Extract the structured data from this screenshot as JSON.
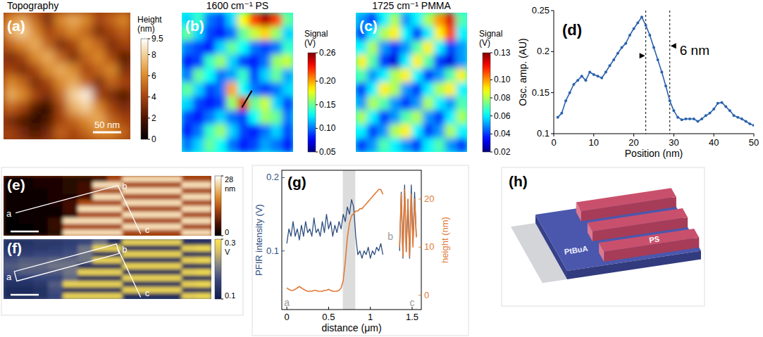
{
  "chart_data": [
    {
      "type": "heatmap",
      "panel": "(a)",
      "title": "Topography",
      "colorbar_label": "Height (nm)",
      "colorbar_range": [
        0,
        9.5
      ],
      "colorbar_ticks": [
        0,
        2,
        4,
        6,
        8,
        9.5
      ],
      "scale_bar": "50 nm",
      "cells": [
        [
          6,
          7,
          5,
          3,
          6,
          7,
          6,
          4,
          5,
          6
        ],
        [
          7,
          8,
          6,
          4,
          5,
          6,
          5,
          3,
          4,
          5
        ],
        [
          5,
          6,
          7,
          5,
          3,
          4,
          6,
          5,
          3,
          4
        ],
        [
          3,
          4,
          6,
          7,
          5,
          3,
          5,
          6,
          4,
          2
        ],
        [
          4,
          3,
          4,
          6,
          7,
          6,
          4,
          5,
          6,
          3
        ],
        [
          6,
          5,
          3,
          4,
          6,
          7,
          5,
          3,
          5,
          4
        ],
        [
          7,
          6,
          4,
          3,
          5,
          8,
          9,
          4,
          3,
          2
        ],
        [
          5,
          4,
          2,
          1,
          4,
          7,
          8,
          6,
          4,
          3
        ],
        [
          3,
          2,
          1,
          2,
          4,
          5,
          6,
          7,
          5,
          4
        ],
        [
          4,
          3,
          2,
          3,
          5,
          4,
          5,
          6,
          6,
          5
        ]
      ]
    },
    {
      "type": "heatmap",
      "panel": "(b)",
      "title": "1600 cm⁻¹ PS",
      "colorbar_label": "Signal (V)",
      "colorbar_range": [
        0.05,
        0.26
      ],
      "colorbar_ticks": [
        0.05,
        {
          "value": 0.1,
          "label": "0.10"
        },
        0.15,
        {
          "value": 0.2,
          "label": "0.20"
        },
        0.26
      ],
      "cells": [
        [
          0.12,
          0.14,
          0.1,
          0.09,
          0.12,
          0.18,
          0.22,
          0.25,
          0.22,
          0.15
        ],
        [
          0.15,
          0.12,
          0.09,
          0.08,
          0.1,
          0.15,
          0.17,
          0.19,
          0.16,
          0.12
        ],
        [
          0.1,
          0.09,
          0.08,
          0.12,
          0.15,
          0.13,
          0.1,
          0.09,
          0.1,
          0.14
        ],
        [
          0.08,
          0.09,
          0.14,
          0.16,
          0.12,
          0.09,
          0.08,
          0.1,
          0.16,
          0.17
        ],
        [
          0.1,
          0.15,
          0.13,
          0.1,
          0.11,
          0.14,
          0.09,
          0.12,
          0.15,
          0.11
        ],
        [
          0.15,
          0.12,
          0.09,
          0.1,
          0.2,
          0.13,
          0.1,
          0.09,
          0.1,
          0.12
        ],
        [
          0.12,
          0.09,
          0.08,
          0.09,
          0.16,
          0.24,
          0.15,
          0.17,
          0.12,
          0.09
        ],
        [
          0.09,
          0.08,
          0.1,
          0.12,
          0.1,
          0.09,
          0.13,
          0.16,
          0.15,
          0.1
        ],
        [
          0.08,
          0.1,
          0.14,
          0.16,
          0.12,
          0.09,
          0.08,
          0.1,
          0.12,
          0.09
        ],
        [
          0.1,
          0.12,
          0.15,
          0.13,
          0.1,
          0.08,
          0.09,
          0.11,
          0.1,
          0.08
        ]
      ]
    },
    {
      "type": "heatmap",
      "panel": "(c)",
      "title": "1725 cm⁻¹ PMMA",
      "colorbar_label": "Signal (V)",
      "colorbar_range": [
        0.02,
        0.13
      ],
      "colorbar_ticks": [
        0.02,
        0.04,
        0.06,
        0.08,
        {
          "value": 0.1,
          "label": "0.10"
        },
        0.13
      ],
      "cells": [
        [
          0.05,
          0.04,
          0.06,
          0.08,
          0.05,
          0.06,
          0.08,
          0.1,
          0.12,
          0.07
        ],
        [
          0.04,
          0.06,
          0.08,
          0.09,
          0.06,
          0.04,
          0.06,
          0.09,
          0.11,
          0.06
        ],
        [
          0.06,
          0.08,
          0.05,
          0.04,
          0.05,
          0.07,
          0.09,
          0.06,
          0.04,
          0.05
        ],
        [
          0.09,
          0.07,
          0.04,
          0.03,
          0.06,
          0.09,
          0.07,
          0.04,
          0.03,
          0.05
        ],
        [
          0.07,
          0.05,
          0.06,
          0.08,
          0.09,
          0.06,
          0.04,
          0.05,
          0.07,
          0.09
        ],
        [
          0.04,
          0.06,
          0.09,
          0.08,
          0.05,
          0.04,
          0.06,
          0.08,
          0.09,
          0.06
        ],
        [
          0.05,
          0.08,
          0.07,
          0.05,
          0.04,
          0.05,
          0.08,
          0.06,
          0.05,
          0.07
        ],
        [
          0.08,
          0.06,
          0.04,
          0.05,
          0.07,
          0.08,
          0.05,
          0.04,
          0.06,
          0.08
        ],
        [
          0.06,
          0.04,
          0.05,
          0.08,
          0.09,
          0.06,
          0.04,
          0.05,
          0.08,
          0.06
        ],
        [
          0.04,
          0.05,
          0.07,
          0.06,
          0.05,
          0.04,
          0.06,
          0.07,
          0.05,
          0.04
        ]
      ]
    },
    {
      "type": "line",
      "panel": "(d)",
      "x_label": "Position (nm)",
      "y_label": "Osc. amp. (AU)",
      "x": [
        1,
        2,
        3,
        4,
        5,
        6,
        7,
        8,
        9,
        10,
        11,
        12,
        13,
        14,
        15,
        16,
        17,
        18,
        19,
        20,
        21,
        22,
        23,
        24,
        25,
        26,
        27,
        28,
        29,
        30,
        31,
        32,
        33,
        34,
        35,
        36,
        37,
        38,
        39,
        40,
        41,
        42,
        43,
        44,
        45,
        46,
        47,
        48,
        49,
        50
      ],
      "series": [
        {
          "color": "#2a62ad",
          "marker": "circle",
          "values": [
            0.12,
            0.125,
            0.14,
            0.15,
            0.16,
            0.165,
            0.17,
            0.165,
            0.175,
            0.172,
            0.17,
            0.168,
            0.175,
            0.183,
            0.19,
            0.198,
            0.205,
            0.21,
            0.22,
            0.228,
            0.235,
            0.242,
            0.232,
            0.22,
            0.205,
            0.19,
            0.175,
            0.158,
            0.14,
            0.128,
            0.12,
            0.117,
            0.118,
            0.118,
            0.118,
            0.115,
            0.118,
            0.122,
            0.125,
            0.13,
            0.137,
            0.138,
            0.133,
            0.128,
            0.122,
            0.12,
            0.118,
            0.115,
            0.112,
            0.11
          ]
        }
      ],
      "xlim": [
        0,
        50
      ],
      "xticks": [
        0,
        10,
        20,
        30,
        40,
        50
      ],
      "ylim": [
        0.1,
        0.25
      ],
      "yticks": [
        0.1,
        0.15,
        0.2,
        0.25
      ],
      "width_marker": {
        "label": "6 nm",
        "x": [
          23,
          29
        ]
      }
    },
    {
      "type": "heatmap",
      "panel": "(e)",
      "colorbar_label": "nm",
      "colorbar_range": [
        0,
        28
      ],
      "colorbar_ticks": [
        0,
        28
      ],
      "annotations": [
        "a",
        "b",
        "c"
      ],
      "cells": [
        [
          1,
          1,
          2,
          2,
          3,
          3,
          5,
          12,
          25,
          25,
          25,
          25,
          12,
          12
        ],
        [
          1,
          1,
          2,
          2,
          3,
          5,
          25,
          25,
          12,
          12,
          12,
          12,
          25,
          25
        ],
        [
          1,
          1,
          1,
          2,
          3,
          5,
          12,
          12,
          25,
          25,
          25,
          25,
          12,
          12
        ],
        [
          1,
          1,
          1,
          2,
          2,
          5,
          25,
          25,
          12,
          12,
          12,
          12,
          25,
          25
        ],
        [
          1,
          1,
          1,
          2,
          5,
          12,
          12,
          12,
          25,
          25,
          25,
          25,
          12,
          12
        ],
        [
          1,
          1,
          1,
          1,
          5,
          25,
          25,
          25,
          12,
          12,
          12,
          12,
          25,
          25
        ],
        [
          0,
          1,
          1,
          1,
          4,
          12,
          12,
          12,
          25,
          25,
          25,
          25,
          12,
          12
        ],
        [
          0,
          1,
          1,
          4,
          25,
          25,
          25,
          25,
          12,
          12,
          12,
          12,
          25,
          25
        ],
        [
          0,
          0,
          1,
          4,
          12,
          12,
          12,
          12,
          25,
          25,
          25,
          25,
          12,
          12
        ],
        [
          0,
          0,
          1,
          3,
          25,
          25,
          25,
          25,
          12,
          12,
          12,
          12,
          25,
          25
        ]
      ]
    },
    {
      "type": "heatmap",
      "panel": "(f)",
      "colorbar_label": "V",
      "colorbar_range": [
        0.1,
        0.3
      ],
      "colorbar_ticks": [
        0.1,
        0.3
      ],
      "annotations": [
        "a",
        "b",
        "c"
      ],
      "cells": [
        [
          0.13,
          0.13,
          0.14,
          0.14,
          0.15,
          0.16,
          0.2,
          0.12,
          0.28,
          0.28,
          0.28,
          0.28,
          0.12,
          0.12
        ],
        [
          0.13,
          0.14,
          0.14,
          0.15,
          0.16,
          0.2,
          0.28,
          0.28,
          0.12,
          0.12,
          0.12,
          0.12,
          0.28,
          0.29
        ],
        [
          0.15,
          0.15,
          0.16,
          0.16,
          0.17,
          0.2,
          0.12,
          0.12,
          0.28,
          0.28,
          0.28,
          0.28,
          0.12,
          0.12
        ],
        [
          0.17,
          0.18,
          0.18,
          0.19,
          0.19,
          0.2,
          0.28,
          0.28,
          0.12,
          0.12,
          0.12,
          0.12,
          0.28,
          0.29
        ],
        [
          0.18,
          0.19,
          0.19,
          0.2,
          0.2,
          0.12,
          0.12,
          0.12,
          0.28,
          0.28,
          0.28,
          0.28,
          0.12,
          0.12
        ],
        [
          0.17,
          0.18,
          0.18,
          0.18,
          0.2,
          0.28,
          0.28,
          0.28,
          0.12,
          0.12,
          0.12,
          0.12,
          0.28,
          0.29
        ],
        [
          0.15,
          0.15,
          0.16,
          0.16,
          0.19,
          0.12,
          0.12,
          0.12,
          0.28,
          0.28,
          0.28,
          0.28,
          0.12,
          0.12
        ],
        [
          0.13,
          0.13,
          0.14,
          0.18,
          0.28,
          0.28,
          0.28,
          0.28,
          0.12,
          0.12,
          0.12,
          0.12,
          0.28,
          0.29
        ],
        [
          0.12,
          0.12,
          0.13,
          0.17,
          0.12,
          0.12,
          0.12,
          0.12,
          0.28,
          0.28,
          0.28,
          0.28,
          0.12,
          0.12
        ],
        [
          0.12,
          0.12,
          0.13,
          0.16,
          0.28,
          0.28,
          0.28,
          0.28,
          0.12,
          0.12,
          0.12,
          0.12,
          0.28,
          0.29
        ]
      ]
    },
    {
      "type": "line",
      "panel": "(g)",
      "x_label": "distance (μm)",
      "y_label": "PFIR intensity (V)",
      "y2_label": "height (nm)",
      "x": [
        0,
        0.025,
        0.05,
        0.075,
        0.1,
        0.125,
        0.15,
        0.175,
        0.2,
        0.225,
        0.25,
        0.275,
        0.3,
        0.325,
        0.35,
        0.375,
        0.4,
        0.425,
        0.45,
        0.475,
        0.5,
        0.525,
        0.55,
        0.575,
        0.6,
        0.625,
        0.65,
        0.675,
        0.7,
        0.725,
        0.75,
        0.775,
        0.8,
        0.825,
        0.85,
        0.875,
        0.9,
        0.925,
        0.95,
        0.975,
        1,
        1.025,
        1.05,
        1.075,
        1.1,
        1.125,
        1.15,
        1.25,
        1.35,
        1.37,
        1.39,
        1.41,
        1.43,
        1.45,
        1.47,
        1.49,
        1.51,
        1.53,
        1.55
      ],
      "series": [
        {
          "color": "#2f4f7f",
          "values": [
            0.11,
            0.13,
            0.12,
            0.14,
            0.12,
            0.13,
            0.115,
            0.135,
            0.12,
            0.14,
            0.125,
            0.13,
            0.12,
            0.145,
            0.125,
            0.13,
            0.12,
            0.14,
            0.125,
            0.15,
            0.13,
            0.14,
            0.12,
            0.135,
            0.125,
            0.14,
            0.13,
            0.15,
            0.14,
            0.16,
            0.15,
            0.17,
            0.16,
            0.12,
            0.095,
            0.1,
            0.09,
            0.1,
            0.095,
            0.105,
            0.09,
            0.1,
            0.095,
            0.105,
            0.1,
            0.11,
            0.095,
            null,
            0.1,
            0.18,
            0.09,
            0.19,
            0.1,
            0.17,
            0.09,
            0.19,
            0.11,
            0.18,
            0.12
          ]
        },
        {
          "color": "#e07b39",
          "axis": "y2",
          "values": [
            1.5,
            1.2,
            1,
            1,
            1.2,
            1.5,
            1.8,
            1.5,
            1.2,
            1,
            0.8,
            0.8,
            0.8,
            1,
            1,
            0.8,
            0.8,
            0.8,
            1,
            1,
            1.2,
            1,
            0.8,
            0.8,
            0.8,
            1,
            1.5,
            3,
            7,
            12,
            15,
            16.5,
            17,
            17.5,
            17.5,
            18,
            18,
            18.5,
            19,
            19.5,
            20,
            20.5,
            21,
            21.5,
            22,
            22,
            21,
            null,
            10,
            21,
            8,
            22,
            9,
            20,
            8,
            21,
            10,
            20,
            12
          ]
        }
      ],
      "xlim": [
        -0.06,
        1.61
      ],
      "xticks": [
        0,
        0.5,
        1,
        1.5
      ],
      "ylim": [
        0.02,
        0.21
      ],
      "yticks": [
        0.1,
        0.2
      ],
      "y2lim": [
        -3,
        26
      ],
      "y2ticks": [
        0,
        10,
        20
      ],
      "highlight_x": [
        0.67,
        0.82
      ],
      "annotations": [
        {
          "text": "a",
          "x": 0,
          "y": 0.03
        },
        {
          "text": "b",
          "x": 1.24,
          "y": 0.12
        },
        {
          "text": "c",
          "x": 1.5,
          "y": 0.03
        }
      ]
    },
    {
      "type": "illustration",
      "panel": "(h)",
      "labels": [
        "PtBuA",
        "PS"
      ]
    }
  ]
}
